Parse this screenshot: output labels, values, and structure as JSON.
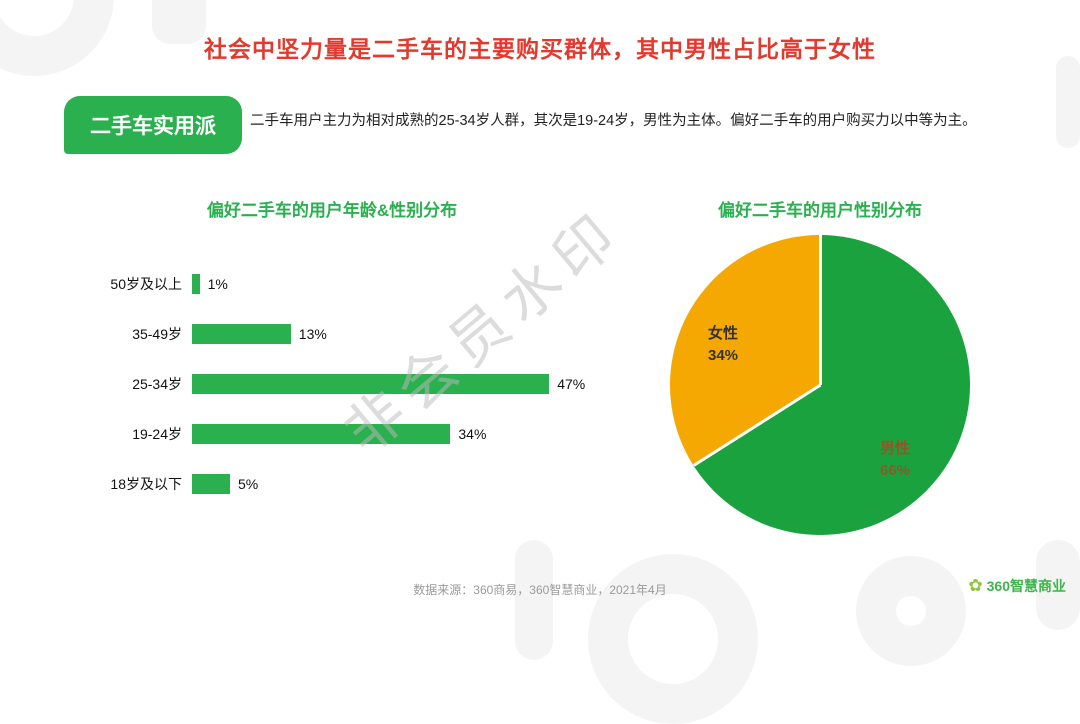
{
  "page": {
    "title": "社会中坚力量是二手车的主要购买群体，其中男性占比高于女性",
    "badge_label": "二手车实用派",
    "description": "二手车用户主力为相对成熟的25-34岁人群，其次是19-24岁，男性为主体。偏好二手车的用户购买力以中等为主。",
    "watermark": "非会员水印",
    "footer_source": "数据来源：360商易，360智慧商业，2021年4月",
    "logo_text": "360智慧商业",
    "logo_icon": "✿"
  },
  "colors": {
    "title_red": "#e13a2f",
    "brand_green": "#2bb04f",
    "bar_green": "#2bb04f",
    "pie_green": "#1aa23f",
    "pie_yellow": "#f5a802"
  },
  "chart_data": [
    {
      "type": "bar",
      "orientation": "horizontal",
      "title": "偏好二手车的用户年龄&性别分布",
      "categories": [
        "50岁及以上",
        "35-49岁",
        "25-34岁",
        "19-24岁",
        "18岁及以下"
      ],
      "values": [
        1,
        13,
        47,
        34,
        5
      ],
      "unit": "%",
      "xlim": [
        0,
        50
      ],
      "grid": false,
      "value_labels": true
    },
    {
      "type": "pie",
      "title": "偏好二手车的用户性别分布",
      "slices": [
        {
          "label": "男性",
          "value": 66,
          "pct_label": "66%",
          "color_key": "pie_green"
        },
        {
          "label": "女性",
          "value": 34,
          "pct_label": "34%",
          "color_key": "pie_yellow"
        }
      ],
      "start_angle_deg": 0,
      "legend": "labels-inside"
    }
  ]
}
